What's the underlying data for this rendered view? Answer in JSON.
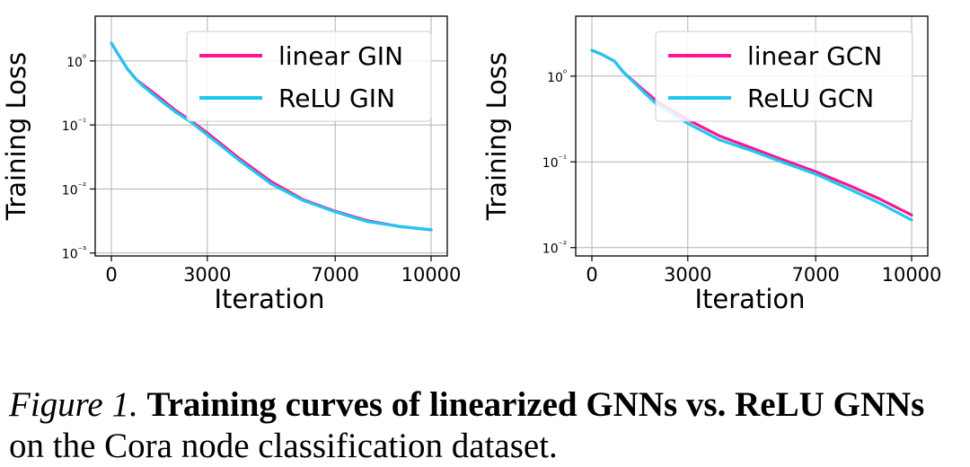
{
  "chart_data": [
    {
      "type": "line",
      "yscale": "log",
      "xlabel": "Iteration",
      "ylabel": "Training Loss",
      "xlim": [
        0,
        10000
      ],
      "ylim": [
        0.0009,
        5
      ],
      "xticks": [
        0,
        3000,
        7000,
        10000
      ],
      "xtick_labels": [
        "0",
        "3000",
        "7000",
        "10000"
      ],
      "yticks": [
        1,
        0.1,
        0.01,
        0.001
      ],
      "ytick_labels": [
        "10⁰",
        "10⁻¹",
        "10⁻²",
        "10⁻³"
      ],
      "grid": true,
      "legend": "top-right",
      "series": [
        {
          "name": "linear GIN",
          "color": "#ff1493",
          "x": [
            0,
            200,
            500,
            800,
            1000,
            1500,
            2000,
            2500,
            3000,
            4000,
            5000,
            6000,
            7000,
            8000,
            9000,
            10000
          ],
          "y": [
            1.9,
            1.3,
            0.75,
            0.5,
            0.42,
            0.27,
            0.17,
            0.115,
            0.075,
            0.03,
            0.013,
            0.0068,
            0.0045,
            0.0032,
            0.0026,
            0.0023
          ]
        },
        {
          "name": "ReLU GIN",
          "color": "#1ec8f0",
          "x": [
            0,
            200,
            500,
            800,
            1000,
            1500,
            2000,
            2500,
            3000,
            4000,
            5000,
            6000,
            7000,
            8000,
            9000,
            10000
          ],
          "y": [
            1.9,
            1.3,
            0.75,
            0.5,
            0.4,
            0.25,
            0.16,
            0.11,
            0.07,
            0.028,
            0.012,
            0.0066,
            0.0044,
            0.0031,
            0.0026,
            0.0023
          ]
        }
      ]
    },
    {
      "type": "line",
      "yscale": "log",
      "xlabel": "Iteration",
      "ylabel": "Training Loss",
      "xlim": [
        0,
        10000
      ],
      "ylim": [
        0.008,
        5
      ],
      "xticks": [
        0,
        3000,
        7000,
        10000
      ],
      "xtick_labels": [
        "0",
        "3000",
        "7000",
        "10000"
      ],
      "yticks": [
        1,
        0.1,
        0.01
      ],
      "ytick_labels": [
        "10⁰",
        "10⁻¹",
        "10⁻²"
      ],
      "grid": true,
      "legend": "top-right",
      "series": [
        {
          "name": "linear GCN",
          "color": "#ff1493",
          "x": [
            0,
            300,
            700,
            1000,
            1500,
            2000,
            2500,
            3000,
            4000,
            5000,
            6000,
            7000,
            8000,
            9000,
            10000
          ],
          "y": [
            2.0,
            1.8,
            1.5,
            1.1,
            0.75,
            0.52,
            0.4,
            0.31,
            0.2,
            0.145,
            0.105,
            0.077,
            0.054,
            0.037,
            0.024
          ]
        },
        {
          "name": "ReLU GCN",
          "color": "#1ec8f0",
          "x": [
            0,
            300,
            700,
            1000,
            1500,
            2000,
            2500,
            3000,
            4000,
            5000,
            6000,
            7000,
            8000,
            9000,
            10000
          ],
          "y": [
            2.0,
            1.8,
            1.5,
            1.1,
            0.72,
            0.48,
            0.37,
            0.28,
            0.18,
            0.135,
            0.098,
            0.072,
            0.049,
            0.033,
            0.021
          ]
        }
      ]
    }
  ],
  "caption": {
    "label": "Figure 1.",
    "bold": "Training curves of linearized GNNs vs. ReLU GNNs",
    "rest": "on the Cora node classification dataset."
  }
}
